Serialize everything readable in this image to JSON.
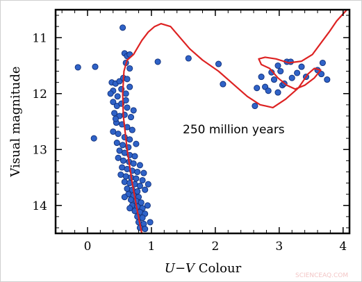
{
  "chart_data": {
    "type": "scatter",
    "xlabel_italic": "U−V",
    "xlabel_rest": " Colour",
    "ylabel": "Visual magnitude",
    "annotation": "250 million years",
    "xlim": [
      -0.5,
      4.1
    ],
    "ylim": [
      14.5,
      10.5
    ],
    "y_inverted": true,
    "grid": false,
    "x_ticks": [
      0,
      1,
      2,
      3,
      4
    ],
    "y_ticks": [
      11,
      12,
      13,
      14
    ],
    "colors": {
      "points": "#2f62c7",
      "point_edge": "#0f2f7a",
      "curve": "#dd2222",
      "frame": "#000000"
    },
    "series": [
      {
        "kind": "scatter",
        "points": [
          [
            -0.15,
            11.53
          ],
          [
            0.12,
            11.52
          ],
          [
            0.1,
            12.8
          ],
          [
            0.55,
            10.82
          ],
          [
            0.58,
            11.28
          ],
          [
            0.62,
            11.33
          ],
          [
            0.6,
            11.45
          ],
          [
            0.66,
            11.55
          ],
          [
            0.66,
            11.3
          ],
          [
            1.1,
            11.43
          ],
          [
            1.58,
            11.37
          ],
          [
            2.05,
            11.47
          ],
          [
            2.12,
            11.83
          ],
          [
            2.62,
            12.22
          ],
          [
            2.72,
            11.7
          ],
          [
            2.78,
            11.88
          ],
          [
            2.83,
            11.95
          ],
          [
            2.88,
            11.62
          ],
          [
            2.92,
            11.75
          ],
          [
            2.98,
            11.5
          ],
          [
            3.02,
            11.6
          ],
          [
            3.05,
            11.85
          ],
          [
            3.08,
            11.82
          ],
          [
            3.12,
            11.43
          ],
          [
            3.18,
            11.43
          ],
          [
            3.28,
            11.63
          ],
          [
            3.35,
            11.52
          ],
          [
            3.42,
            11.7
          ],
          [
            3.6,
            11.58
          ],
          [
            3.66,
            11.65
          ],
          [
            3.68,
            11.45
          ],
          [
            3.75,
            11.75
          ],
          [
            2.65,
            11.9
          ],
          [
            2.98,
            11.98
          ],
          [
            3.2,
            11.72
          ],
          [
            0.38,
            11.8
          ],
          [
            0.44,
            11.82
          ],
          [
            0.5,
            11.78
          ],
          [
            0.56,
            11.72
          ],
          [
            0.62,
            11.74
          ],
          [
            0.4,
            11.95
          ],
          [
            0.47,
            12.05
          ],
          [
            0.53,
            11.92
          ],
          [
            0.6,
            12.0
          ],
          [
            0.66,
            11.88
          ],
          [
            0.4,
            12.15
          ],
          [
            0.46,
            12.22
          ],
          [
            0.53,
            12.18
          ],
          [
            0.62,
            12.25
          ],
          [
            0.72,
            12.3
          ],
          [
            0.42,
            12.35
          ],
          [
            0.5,
            12.4
          ],
          [
            0.58,
            12.38
          ],
          [
            0.45,
            12.52
          ],
          [
            0.54,
            12.55
          ],
          [
            0.62,
            12.6
          ],
          [
            0.7,
            12.65
          ],
          [
            0.4,
            12.68
          ],
          [
            0.48,
            12.72
          ],
          [
            0.58,
            12.78
          ],
          [
            0.66,
            12.82
          ],
          [
            0.46,
            12.88
          ],
          [
            0.55,
            12.92
          ],
          [
            0.64,
            12.96
          ],
          [
            0.76,
            12.9
          ],
          [
            0.5,
            13.02
          ],
          [
            0.58,
            13.06
          ],
          [
            0.66,
            13.1
          ],
          [
            0.74,
            13.12
          ],
          [
            0.48,
            13.15
          ],
          [
            0.56,
            13.2
          ],
          [
            0.65,
            13.22
          ],
          [
            0.72,
            13.25
          ],
          [
            0.82,
            13.28
          ],
          [
            0.54,
            13.32
          ],
          [
            0.62,
            13.35
          ],
          [
            0.7,
            13.38
          ],
          [
            0.78,
            13.4
          ],
          [
            0.52,
            13.45
          ],
          [
            0.6,
            13.48
          ],
          [
            0.68,
            13.5
          ],
          [
            0.76,
            13.52
          ],
          [
            0.86,
            13.55
          ],
          [
            0.58,
            13.58
          ],
          [
            0.66,
            13.6
          ],
          [
            0.74,
            13.62
          ],
          [
            0.82,
            13.65
          ],
          [
            0.62,
            13.7
          ],
          [
            0.7,
            13.72
          ],
          [
            0.78,
            13.75
          ],
          [
            0.9,
            13.72
          ],
          [
            0.64,
            13.8
          ],
          [
            0.72,
            13.82
          ],
          [
            0.8,
            13.85
          ],
          [
            0.68,
            13.9
          ],
          [
            0.76,
            13.92
          ],
          [
            0.84,
            13.95
          ],
          [
            0.7,
            14.0
          ],
          [
            0.78,
            14.02
          ],
          [
            0.86,
            14.05
          ],
          [
            0.94,
            14.0
          ],
          [
            0.74,
            14.1
          ],
          [
            0.82,
            14.12
          ],
          [
            0.9,
            14.15
          ],
          [
            0.78,
            14.2
          ],
          [
            0.86,
            14.22
          ],
          [
            0.8,
            14.3
          ],
          [
            0.88,
            14.33
          ],
          [
            0.82,
            14.4
          ],
          [
            0.9,
            14.42
          ],
          [
            0.98,
            14.3
          ],
          [
            0.66,
            14.05
          ],
          [
            0.58,
            13.85
          ],
          [
            0.44,
            12.45
          ],
          [
            0.36,
            12.0
          ],
          [
            0.88,
            13.42
          ],
          [
            0.95,
            13.62
          ],
          [
            0.6,
            12.12
          ],
          [
            0.68,
            12.42
          ]
        ]
      },
      {
        "kind": "isochrone",
        "points": [
          [
            0.85,
            14.5
          ],
          [
            0.78,
            14.1
          ],
          [
            0.7,
            13.6
          ],
          [
            0.62,
            13.0
          ],
          [
            0.56,
            12.4
          ],
          [
            0.55,
            12.0
          ],
          [
            0.57,
            11.6
          ],
          [
            0.62,
            11.4
          ],
          [
            0.72,
            11.3
          ],
          [
            0.85,
            11.05
          ],
          [
            0.95,
            10.9
          ],
          [
            1.05,
            10.8
          ],
          [
            1.15,
            10.75
          ],
          [
            1.3,
            10.8
          ],
          [
            1.45,
            11.0
          ],
          [
            1.6,
            11.2
          ],
          [
            1.8,
            11.4
          ],
          [
            2.05,
            11.6
          ],
          [
            2.3,
            11.85
          ],
          [
            2.5,
            12.05
          ],
          [
            2.7,
            12.2
          ],
          [
            2.9,
            12.25
          ],
          [
            3.1,
            12.1
          ],
          [
            3.3,
            11.9
          ],
          [
            3.45,
            11.65
          ],
          [
            3.55,
            11.55
          ],
          [
            3.65,
            11.58
          ],
          [
            3.55,
            11.72
          ],
          [
            3.4,
            11.85
          ],
          [
            3.25,
            11.92
          ],
          [
            3.12,
            11.85
          ],
          [
            2.98,
            11.72
          ],
          [
            2.85,
            11.55
          ],
          [
            2.72,
            11.48
          ],
          [
            2.68,
            11.38
          ],
          [
            2.78,
            11.35
          ],
          [
            2.95,
            11.38
          ],
          [
            3.15,
            11.45
          ],
          [
            3.35,
            11.42
          ],
          [
            3.52,
            11.3
          ],
          [
            3.65,
            11.1
          ],
          [
            3.78,
            10.9
          ],
          [
            3.9,
            10.7
          ],
          [
            4.02,
            10.55
          ],
          [
            4.1,
            10.45
          ]
        ]
      }
    ]
  },
  "watermark": "SCIENCEAQ.COM"
}
